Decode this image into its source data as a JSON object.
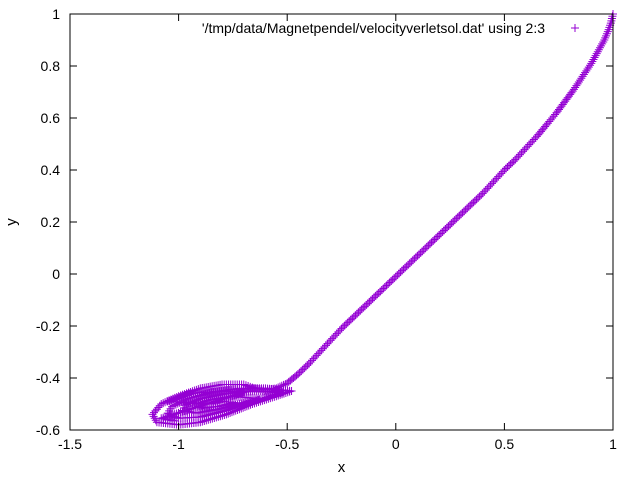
{
  "chart_data": {
    "type": "scatter",
    "xlabel": "x",
    "ylabel": "y",
    "xlim": [
      -1.5,
      1
    ],
    "ylim": [
      -0.6,
      1
    ],
    "xticks": [
      "-1.5",
      "-1",
      "-0.5",
      "0",
      "0.5",
      "1"
    ],
    "yticks": [
      "-0.6",
      "-0.4",
      "-0.2",
      "0",
      "0.2",
      "0.4",
      "0.6",
      "0.8",
      "1"
    ],
    "xtick_values": [
      -1.5,
      -1,
      -0.5,
      0,
      0.5,
      1
    ],
    "ytick_values": [
      -0.6,
      -0.4,
      -0.2,
      0,
      0.2,
      0.4,
      0.6,
      0.8,
      1
    ],
    "grid": false,
    "legend_position": "top-right",
    "marker": "+",
    "series": [
      {
        "name": "'/tmp/data/Magnetpendel/velocityverletsol.dat' using 2:3",
        "color": "#9400d3",
        "points": [
          [
            1.0,
            1.0
          ],
          [
            0.99,
            0.965
          ],
          [
            0.98,
            0.94
          ],
          [
            0.96,
            0.9
          ],
          [
            0.93,
            0.855
          ],
          [
            0.9,
            0.81
          ],
          [
            0.86,
            0.76
          ],
          [
            0.82,
            0.71
          ],
          [
            0.78,
            0.665
          ],
          [
            0.74,
            0.62
          ],
          [
            0.7,
            0.58
          ],
          [
            0.65,
            0.53
          ],
          [
            0.6,
            0.485
          ],
          [
            0.55,
            0.44
          ],
          [
            0.5,
            0.4
          ],
          [
            0.45,
            0.355
          ],
          [
            0.4,
            0.31
          ],
          [
            0.35,
            0.27
          ],
          [
            0.3,
            0.23
          ],
          [
            0.25,
            0.19
          ],
          [
            0.2,
            0.15
          ],
          [
            0.15,
            0.11
          ],
          [
            0.1,
            0.07
          ],
          [
            0.05,
            0.03
          ],
          [
            0.0,
            -0.01
          ],
          [
            -0.05,
            -0.05
          ],
          [
            -0.1,
            -0.09
          ],
          [
            -0.15,
            -0.13
          ],
          [
            -0.2,
            -0.17
          ],
          [
            -0.25,
            -0.21
          ],
          [
            -0.3,
            -0.255
          ],
          [
            -0.35,
            -0.3
          ],
          [
            -0.4,
            -0.345
          ],
          [
            -0.45,
            -0.385
          ],
          [
            -0.5,
            -0.42
          ],
          [
            -0.55,
            -0.44
          ],
          [
            -0.6,
            -0.445
          ],
          [
            -0.65,
            -0.44
          ],
          [
            -0.7,
            -0.425
          ],
          [
            -0.8,
            -0.425
          ],
          [
            -0.9,
            -0.44
          ],
          [
            -1.0,
            -0.47
          ],
          [
            -1.08,
            -0.5
          ],
          [
            -1.12,
            -0.54
          ],
          [
            -1.1,
            -0.57
          ],
          [
            -1.0,
            -0.58
          ],
          [
            -0.9,
            -0.57
          ],
          [
            -0.78,
            -0.54
          ],
          [
            -0.66,
            -0.5
          ],
          [
            -0.55,
            -0.47
          ],
          [
            -0.48,
            -0.45
          ],
          [
            -0.6,
            -0.44
          ],
          [
            -0.72,
            -0.44
          ],
          [
            -0.85,
            -0.455
          ],
          [
            -0.96,
            -0.48
          ],
          [
            -1.03,
            -0.51
          ],
          [
            -1.05,
            -0.535
          ],
          [
            -1.0,
            -0.555
          ],
          [
            -0.9,
            -0.55
          ],
          [
            -0.78,
            -0.525
          ],
          [
            -0.67,
            -0.495
          ],
          [
            -0.58,
            -0.47
          ],
          [
            -0.52,
            -0.455
          ],
          [
            -0.65,
            -0.45
          ],
          [
            -0.78,
            -0.46
          ],
          [
            -0.9,
            -0.48
          ],
          [
            -0.97,
            -0.505
          ],
          [
            -0.98,
            -0.525
          ],
          [
            -0.92,
            -0.535
          ],
          [
            -0.82,
            -0.52
          ],
          [
            -0.72,
            -0.5
          ],
          [
            -0.63,
            -0.48
          ],
          [
            -0.75,
            -0.47
          ],
          [
            -0.86,
            -0.485
          ],
          [
            -0.92,
            -0.5
          ],
          [
            -0.9,
            -0.515
          ],
          [
            -0.82,
            -0.51
          ],
          [
            -0.74,
            -0.495
          ],
          [
            -0.8,
            -0.49
          ],
          [
            -0.86,
            -0.5
          ],
          [
            -1.05,
            -0.49
          ],
          [
            -0.95,
            -0.46
          ],
          [
            -0.8,
            -0.45
          ],
          [
            -0.7,
            -0.455
          ],
          [
            -1.08,
            -0.555
          ],
          [
            -1.02,
            -0.565
          ]
        ]
      }
    ]
  }
}
